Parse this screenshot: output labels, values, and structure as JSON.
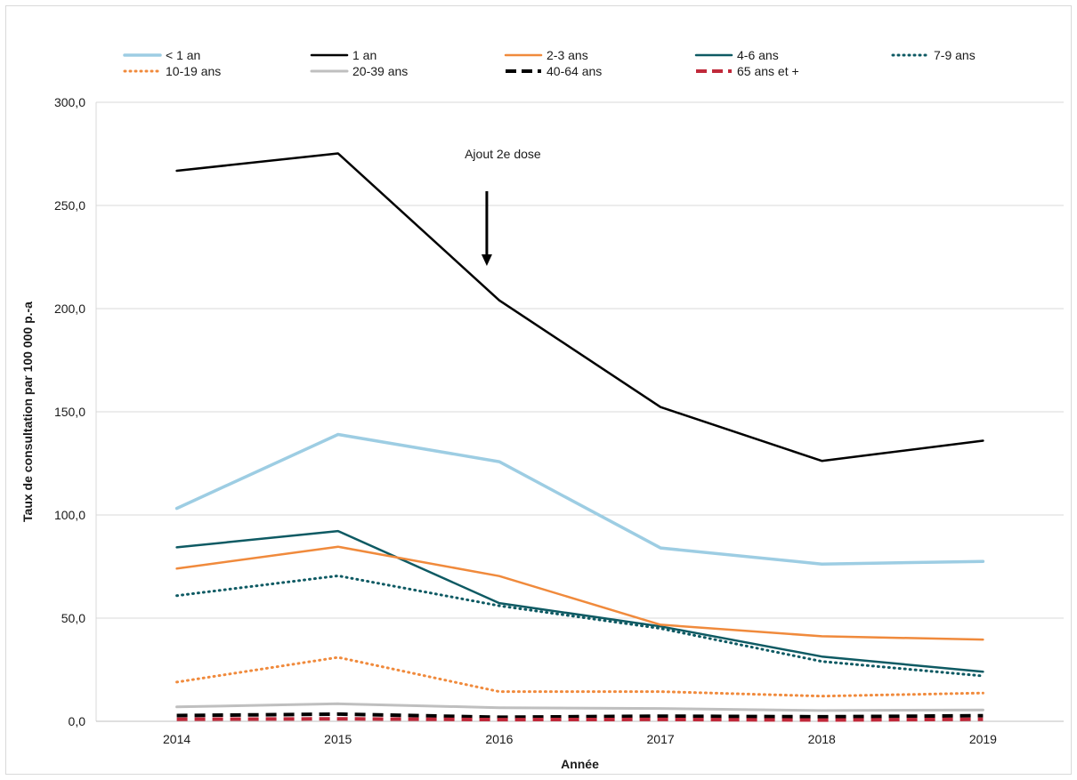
{
  "chart_data": {
    "type": "line",
    "title": "",
    "xlabel": "Année",
    "ylabel": "Taux de consultation par 100 000 p.-a",
    "x": [
      "2014",
      "2015",
      "2016",
      "2017",
      "2018",
      "2019"
    ],
    "ylim": [
      0,
      300
    ],
    "yticks": [
      "0,0",
      "50,0",
      "100,0",
      "150,0",
      "200,0",
      "250,0",
      "300,0"
    ],
    "grid": true,
    "legend_position": "top",
    "annotation": {
      "text": "Ajout 2e dose",
      "x": "2016"
    },
    "series": [
      {
        "name": "< 1 an",
        "values": [
          103.2,
          139.0,
          125.8,
          84.0,
          76.2,
          77.5
        ],
        "color": "#9dcde3",
        "style": "solid"
      },
      {
        "name": "1 an",
        "values": [
          266.8,
          275.2,
          204.0,
          152.3,
          126.2,
          136.0
        ],
        "color": "#000000",
        "style": "solid"
      },
      {
        "name": "2-3 ans",
        "values": [
          74.0,
          84.6,
          70.4,
          46.8,
          41.2,
          39.6
        ],
        "color": "#f08a3c",
        "style": "solid"
      },
      {
        "name": "4-6 ans",
        "values": [
          84.3,
          92.2,
          57.3,
          46.0,
          31.4,
          24.0
        ],
        "color": "#0e5a63",
        "style": "solid"
      },
      {
        "name": "7-9 ans",
        "values": [
          60.9,
          70.5,
          56.0,
          45.0,
          29.0,
          22.0
        ],
        "color": "#0e5a63",
        "style": "dotted"
      },
      {
        "name": "10-19 ans",
        "values": [
          19.0,
          31.0,
          14.4,
          14.4,
          12.2,
          13.7
        ],
        "color": "#f08a3c",
        "style": "dotted"
      },
      {
        "name": "20-39 ans",
        "values": [
          7.0,
          8.5,
          6.6,
          6.2,
          5.2,
          5.5
        ],
        "color": "#bfbfbf",
        "style": "solid"
      },
      {
        "name": "40-64  ans",
        "values": [
          2.8,
          3.5,
          2.0,
          2.5,
          2.2,
          2.7
        ],
        "color": "#000000",
        "style": "dashed"
      },
      {
        "name": "65  ans et +",
        "values": [
          1.0,
          1.2,
          0.8,
          0.9,
          0.6,
          1.0
        ],
        "color": "#c0293a",
        "style": "dashed"
      }
    ]
  }
}
